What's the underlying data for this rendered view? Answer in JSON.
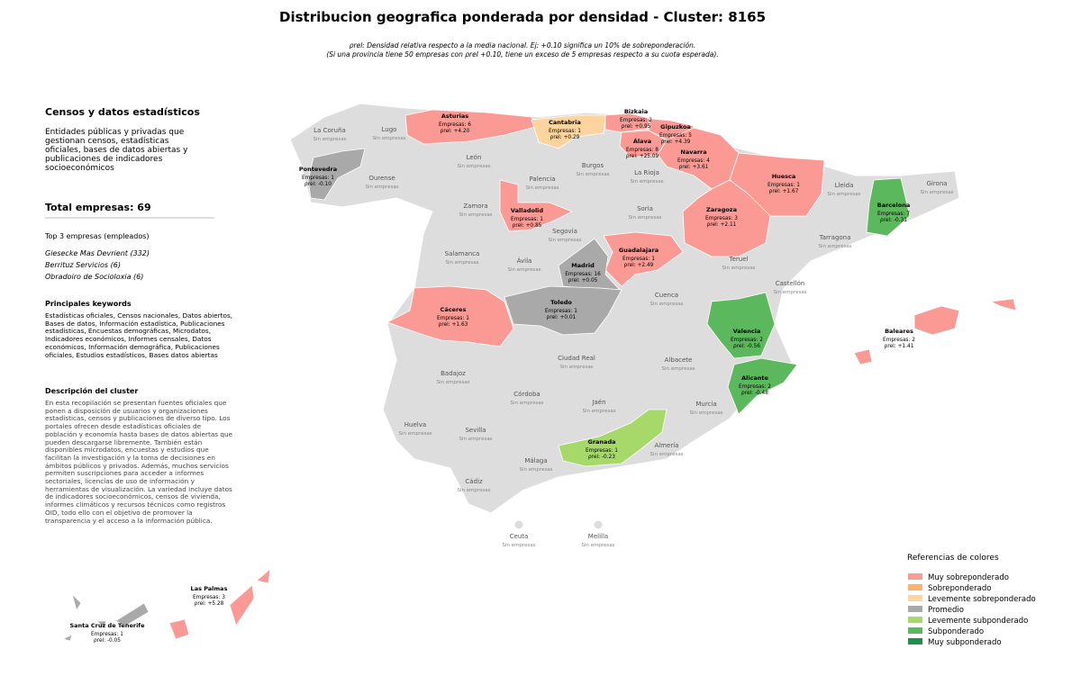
{
  "header": {
    "title": "Distribucion geografica ponderada por densidad - Cluster: 8165",
    "subtitle": [
      "ρrel: Densidad relativa respecto a la media nacional. Ej: +0.10 significa un 10% de sobreponderación.",
      "(Si una provincia tiene 50 empresas con ρrel +0.10, tiene un exceso de 5 empresas respecto a su cuota esperada)."
    ]
  },
  "sidebar": {
    "heading": "Censos y datos estadísticos",
    "summary": "Entidades públicas y privadas que gestionan censos, estadísticas oficiales, bases de datos abiertas y publicaciones de indicadores socioeconómicos",
    "total": "Total empresas: 69",
    "top_heading": "Top 3 empresas (empleados)",
    "top": [
      "Giesecke Mas Devrient (332)",
      "Berrituz Servicios (6)",
      "Obradoiro de Socioloxia (6)"
    ],
    "keywords_heading": "Principales keywords",
    "keywords": "Estadísticas oficiales, Censos nacionales, Datos abiertos, Bases de datos, Información estadística, Publicaciones estadísticas, Encuestas demográficas, Microdatos, Indicadores económicos, Informes censales, Datos económicos, Información demográfica, Publicaciones oficiales, Estudios estadísticos, Bases datos abiertas",
    "description_heading": "Descripción del cluster",
    "description": "En esta recopilación se presentan fuentes oficiales que ponen a disposición de usuarios y organizaciones estadísticas, censos y publicaciones de diverso tipo. Los portales ofrecen desde estadísticas oficiales de población y economía hasta bases de datos abiertas que pueden descargarse libremente. También están disponibles microdatos, encuestas y estudios que facilitan la investigación y la toma de decisiones en ámbitos públicos y privados. Además, muchos servicios permiten suscripciones para acceder a informes sectoriales, licencias de uso de información y herramientas de visualización. La variedad incluye datos de indicadores socioeconómicos, censos de vivienda, informes climáticos y recursos técnicos como registros OID, todo ello con el objetivo de promover la transparencia y el acceso a la información pública."
  },
  "provinces": [
    {
      "name": "Asturias",
      "lines": [
        "Empresas: 6",
        "ρrel: +4.20"
      ],
      "color": "#fb9a94"
    },
    {
      "name": "Cantabria",
      "lines": [
        "Empresas: 1",
        "ρrel: +0.29"
      ],
      "color": "#fdd49e"
    },
    {
      "name": "Bizkaia",
      "lines": [
        "Empresas: 2",
        "ρrel: +0.95"
      ],
      "color": "#fb9a94"
    },
    {
      "name": "Gipuzkoa",
      "lines": [
        "Empresas: 5",
        "ρrel: +4.39"
      ],
      "color": "#fb9a94"
    },
    {
      "name": "Álava",
      "lines": [
        "Empresas: 8",
        "ρrel: +25.09"
      ],
      "color": "#fb9a94"
    },
    {
      "name": "Navarra",
      "lines": [
        "Empresas: 4",
        "ρrel: +3.61"
      ],
      "color": "#fb9a94"
    },
    {
      "name": "Pontevedra",
      "lines": [
        "Empresas: 1",
        "ρrel: -0.10"
      ],
      "color": "#a9a9a9"
    },
    {
      "name": "Huesca",
      "lines": [
        "Empresas: 1",
        "ρrel: +1.67"
      ],
      "color": "#fb9a94"
    },
    {
      "name": "Barcelona",
      "lines": [
        "Empresas: 7",
        "ρrel: -0.31"
      ],
      "color": "#5cb85c"
    },
    {
      "name": "Valladolid",
      "lines": [
        "Empresas: 1",
        "ρrel: +0.85"
      ],
      "color": "#fb9a94"
    },
    {
      "name": "Zaragoza",
      "lines": [
        "Empresas: 3",
        "ρrel: +2.11"
      ],
      "color": "#fb9a94"
    },
    {
      "name": "Guadalajara",
      "lines": [
        "Empresas: 1",
        "ρrel: +2.49"
      ],
      "color": "#fb9a94"
    },
    {
      "name": "Madrid",
      "lines": [
        "Empresas: 16",
        "ρrel: +0.05"
      ],
      "color": "#a9a9a9"
    },
    {
      "name": "Cáceres",
      "lines": [
        "Empresas: 1",
        "ρrel: +1.63"
      ],
      "color": "#fb9a94"
    },
    {
      "name": "Toledo",
      "lines": [
        "Empresas: 1",
        "ρrel: +0.01"
      ],
      "color": "#a9a9a9"
    },
    {
      "name": "Valencia",
      "lines": [
        "Empresas: 2",
        "ρrel: -0.56"
      ],
      "color": "#5cb85c"
    },
    {
      "name": "Baleares",
      "lines": [
        "Empresas: 2",
        "ρrel: +1.41"
      ],
      "color": "#fb9a94"
    },
    {
      "name": "Alicante",
      "lines": [
        "Empresas: 2",
        "ρrel: -0.48"
      ],
      "color": "#5cb85c"
    },
    {
      "name": "Granada",
      "lines": [
        "Empresas: 1",
        "ρrel: -0.23"
      ],
      "color": "#a6d96a"
    },
    {
      "name": "Las Palmas",
      "lines": [
        "Empresas: 3",
        "ρrel: +5.28"
      ],
      "color": "#fb9a94"
    },
    {
      "name": "Santa Cruz de Tenerife",
      "lines": [
        "Empresas: 1",
        "ρrel: -0.05"
      ],
      "color": "#a9a9a9"
    },
    {
      "name": "La Coruña",
      "lines": [
        "Sin empresas"
      ]
    },
    {
      "name": "Lugo",
      "lines": [
        "Sin empresas"
      ]
    },
    {
      "name": "Ourense",
      "lines": [
        "Sin empresas"
      ]
    },
    {
      "name": "León",
      "lines": [
        "Sin empresas"
      ]
    },
    {
      "name": "Palencia",
      "lines": [
        "Sin empresas"
      ]
    },
    {
      "name": "Burgos",
      "lines": [
        "Sin empresas"
      ]
    },
    {
      "name": "La Rioja",
      "lines": [
        "Sin empresas"
      ]
    },
    {
      "name": "Soria",
      "lines": [
        "Sin empresas"
      ]
    },
    {
      "name": "Lleida",
      "lines": [
        "Sin empresas"
      ]
    },
    {
      "name": "Girona",
      "lines": [
        "Sin empresas"
      ]
    },
    {
      "name": "Zamora",
      "lines": [
        "Sin empresas"
      ]
    },
    {
      "name": "Segovia",
      "lines": [
        "Sin empresas"
      ]
    },
    {
      "name": "Tarragona",
      "lines": [
        "Sin empresas"
      ]
    },
    {
      "name": "Salamanca",
      "lines": [
        "Sin empresas"
      ]
    },
    {
      "name": "Ávila",
      "lines": [
        "Sin empresas"
      ]
    },
    {
      "name": "Teruel",
      "lines": [
        "Sin empresas"
      ]
    },
    {
      "name": "Castellón",
      "lines": [
        "Sin empresas"
      ]
    },
    {
      "name": "Cuenca",
      "lines": [
        "Sin empresas"
      ]
    },
    {
      "name": "Badajoz",
      "lines": [
        "Sin empresas"
      ]
    },
    {
      "name": "Ciudad Real",
      "lines": [
        "Sin empresas"
      ]
    },
    {
      "name": "Albacete",
      "lines": [
        "Sin empresas"
      ]
    },
    {
      "name": "Córdoba",
      "lines": [
        "Sin empresas"
      ]
    },
    {
      "name": "Jaén",
      "lines": [
        "Sin empresas"
      ]
    },
    {
      "name": "Murcia",
      "lines": [
        "Sin empresas"
      ]
    },
    {
      "name": "Huelva",
      "lines": [
        "Sin empresas"
      ]
    },
    {
      "name": "Sevilla",
      "lines": [
        "Sin empresas"
      ]
    },
    {
      "name": "Almería",
      "lines": [
        "Sin empresas"
      ]
    },
    {
      "name": "Málaga",
      "lines": [
        "Sin empresas"
      ]
    },
    {
      "name": "Cádiz",
      "lines": [
        "Sin empresas"
      ]
    },
    {
      "name": "Ceuta",
      "lines": [
        "Sin empresas"
      ]
    },
    {
      "name": "Melilla",
      "lines": [
        "Sin empresas"
      ]
    }
  ],
  "legend": {
    "title": "Referencias de colores",
    "items": [
      {
        "label": "Muy sobreponderado",
        "color": "#fb9a94"
      },
      {
        "label": "Sobreponderado",
        "color": "#f9b36b"
      },
      {
        "label": "Levemente sobreponderado",
        "color": "#fdd49e"
      },
      {
        "label": "Promedio",
        "color": "#a9a9a9"
      },
      {
        "label": "Levemente subponderado",
        "color": "#a6d96a"
      },
      {
        "label": "Subponderado",
        "color": "#5cb85c"
      },
      {
        "label": "Muy subponderado",
        "color": "#1f8f4a"
      }
    ]
  }
}
